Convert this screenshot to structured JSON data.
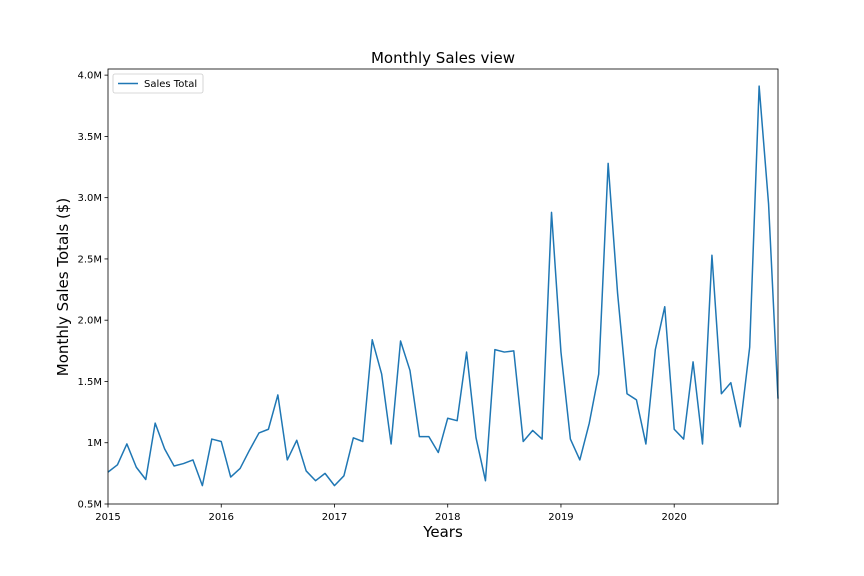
{
  "chart_data": {
    "type": "line",
    "title": "Monthly Sales view",
    "xlabel": "Years",
    "ylabel": "Monthly Sales Totals ($)",
    "x_start": "2015-01",
    "x_end": "2020-12",
    "xlim": [
      "2015-01",
      "2020-12"
    ],
    "ylim": [
      500000,
      4050000
    ],
    "x_ticks": [
      {
        "date": "2015-01",
        "label": "2015"
      },
      {
        "date": "2016-01",
        "label": "2016"
      },
      {
        "date": "2017-01",
        "label": "2017"
      },
      {
        "date": "2018-01",
        "label": "2018"
      },
      {
        "date": "2019-01",
        "label": "2019"
      },
      {
        "date": "2020-01",
        "label": "2020"
      }
    ],
    "y_ticks": [
      {
        "value": 500000,
        "label": "0.5M"
      },
      {
        "value": 1000000,
        "label": "1M"
      },
      {
        "value": 1500000,
        "label": "1.5M"
      },
      {
        "value": 2000000,
        "label": "2.0M"
      },
      {
        "value": 2500000,
        "label": "2.5M"
      },
      {
        "value": 3000000,
        "label": "3.0M"
      },
      {
        "value": 3500000,
        "label": "3.5M"
      },
      {
        "value": 4000000,
        "label": "4.0M"
      }
    ],
    "grid": false,
    "legend_position": "top-left",
    "series": [
      {
        "name": "Sales Total",
        "color": "#1f77b4",
        "x": [
          "2015-01",
          "2015-02",
          "2015-03",
          "2015-04",
          "2015-05",
          "2015-06",
          "2015-07",
          "2015-08",
          "2015-09",
          "2015-10",
          "2015-11",
          "2015-12",
          "2016-01",
          "2016-02",
          "2016-03",
          "2016-04",
          "2016-05",
          "2016-06",
          "2016-07",
          "2016-08",
          "2016-09",
          "2016-10",
          "2016-11",
          "2016-12",
          "2017-01",
          "2017-02",
          "2017-03",
          "2017-04",
          "2017-05",
          "2017-06",
          "2017-07",
          "2017-08",
          "2017-09",
          "2017-10",
          "2017-11",
          "2017-12",
          "2018-01",
          "2018-02",
          "2018-03",
          "2018-04",
          "2018-05",
          "2018-06",
          "2018-07",
          "2018-08",
          "2018-09",
          "2018-10",
          "2018-11",
          "2018-12",
          "2019-01",
          "2019-02",
          "2019-03",
          "2019-04",
          "2019-05",
          "2019-06",
          "2019-07",
          "2019-08",
          "2019-09",
          "2019-10",
          "2019-11",
          "2019-12",
          "2020-01",
          "2020-02",
          "2020-03",
          "2020-04",
          "2020-05",
          "2020-06",
          "2020-07",
          "2020-08",
          "2020-09",
          "2020-10",
          "2020-11",
          "2020-12"
        ],
        "values": [
          760000,
          820000,
          990000,
          800000,
          700000,
          1160000,
          950000,
          810000,
          830000,
          860000,
          650000,
          1030000,
          1010000,
          720000,
          790000,
          940000,
          1080000,
          1110000,
          1390000,
          860000,
          1020000,
          770000,
          690000,
          750000,
          650000,
          730000,
          1040000,
          1010000,
          1840000,
          1560000,
          990000,
          1830000,
          1590000,
          1050000,
          1050000,
          920000,
          1200000,
          1180000,
          1740000,
          1040000,
          690000,
          1760000,
          1740000,
          1750000,
          1010000,
          1100000,
          1030000,
          2880000,
          1740000,
          1030000,
          860000,
          1160000,
          1560000,
          3280000,
          2220000,
          1400000,
          1350000,
          990000,
          1760000,
          2110000,
          1110000,
          1030000,
          1660000,
          990000,
          2530000,
          1400000,
          1490000,
          1130000,
          1780000,
          3910000,
          2950000,
          1360000
        ]
      }
    ]
  }
}
